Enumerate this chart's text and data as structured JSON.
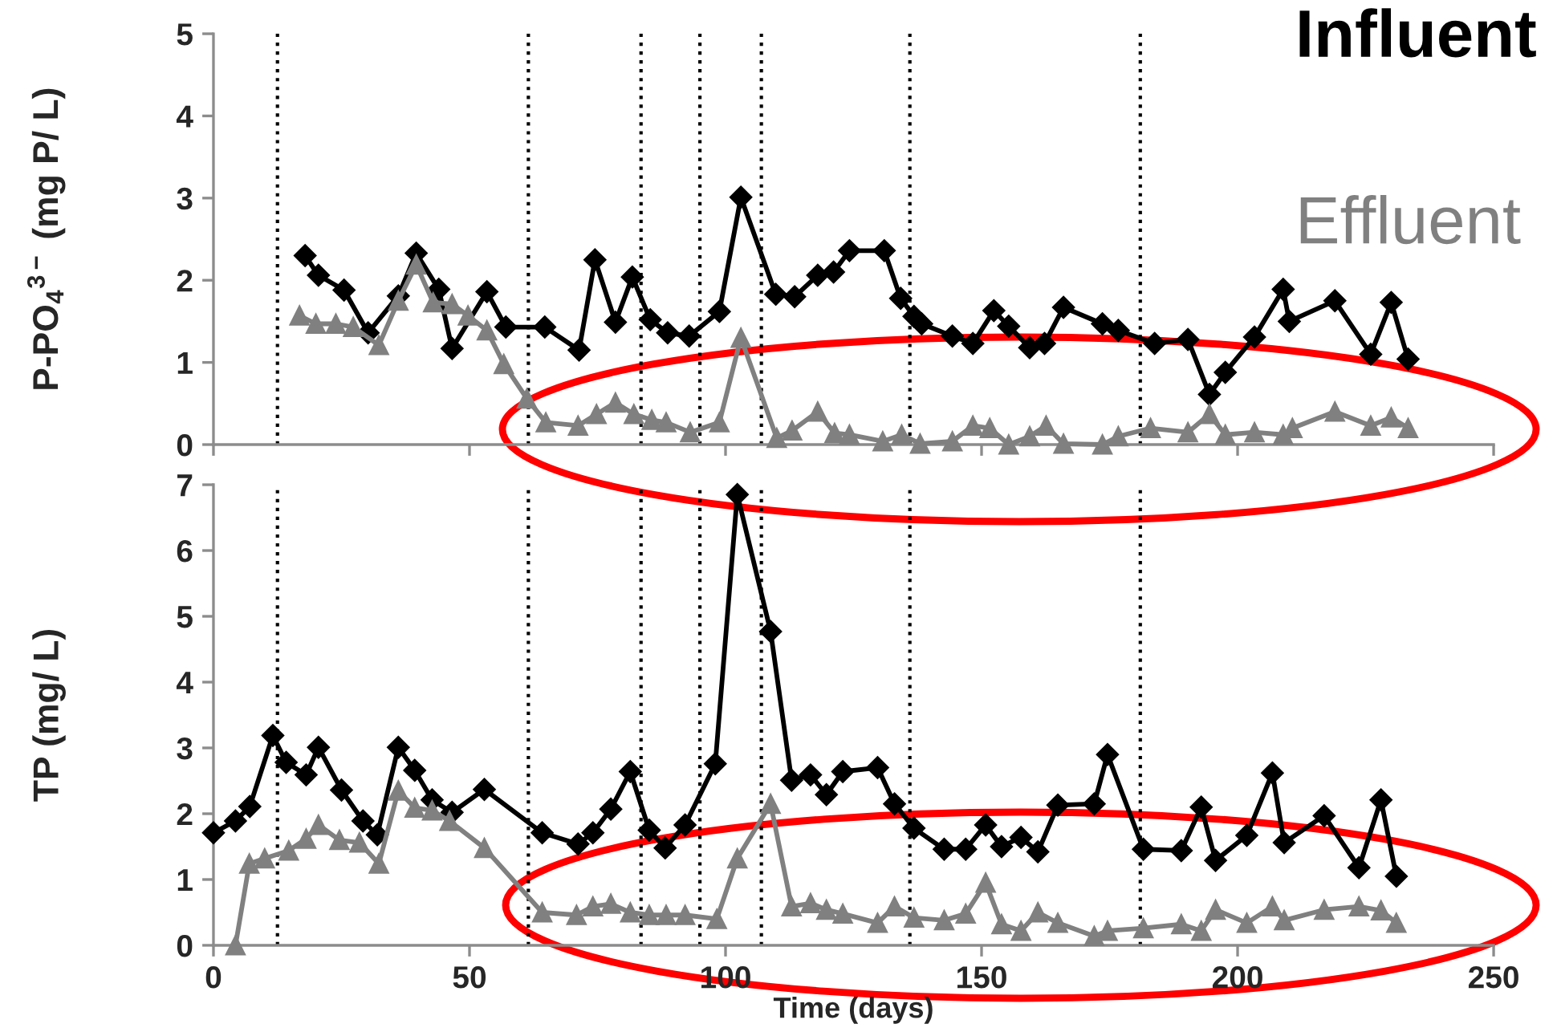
{
  "chart_data": [
    {
      "type": "line",
      "ylabel": "P-PO$_{4}$$^{3−}$ (mg P/ L)",
      "xlim": [
        0,
        250
      ],
      "xticks": [
        0,
        50,
        100,
        150,
        200,
        250
      ],
      "ylim": [
        0,
        5
      ],
      "yticks": [
        0,
        1,
        2,
        3,
        4,
        5
      ],
      "tick_labels": "y",
      "legend": "top right",
      "line_style": "solid",
      "ref_lines": [
        {
          "axis": "x",
          "value": 12.5,
          "color": "#000000",
          "line_style": "dotted"
        },
        {
          "axis": "x",
          "value": 61.5,
          "color": "#000000",
          "line_style": "dotted"
        },
        {
          "axis": "x",
          "value": 83.5,
          "color": "#000000",
          "line_style": "dotted"
        },
        {
          "axis": "x",
          "value": 95,
          "color": "#000000",
          "line_style": "dotted"
        },
        {
          "axis": "x",
          "value": 107,
          "color": "#000000",
          "line_style": "dotted"
        },
        {
          "axis": "x",
          "value": 136,
          "color": "#000000",
          "line_style": "dotted"
        },
        {
          "axis": "x",
          "value": 181,
          "color": "#000000",
          "line_style": "dotted"
        }
      ],
      "series": [
        {
          "name": "Influent",
          "color": "#000000",
          "marker": "diamond",
          "x": [
            17.9,
            20.5,
            25.5,
            30.2,
            36.1,
            39.6,
            44.0,
            46.6,
            53.4,
            57.1,
            64.7,
            71.4,
            74.5,
            78.5,
            81.8,
            85.3,
            88.7,
            92.9,
            98.8,
            103.0,
            109.8,
            113.5,
            118.0,
            121.1,
            124.2,
            131.0,
            134.2,
            136.8,
            138.3,
            144.3,
            148.3,
            152.4,
            155.3,
            159.4,
            162.3,
            166.0,
            173.6,
            176.7,
            183.8,
            190.3,
            194.5,
            197.6,
            203.3,
            208.9,
            210.1,
            219.0,
            226.0,
            230.0,
            233.3
          ],
          "values": [
            2.3,
            2.06,
            1.88,
            1.36,
            1.81,
            2.33,
            1.89,
            1.17,
            1.86,
            1.43,
            1.43,
            1.15,
            2.25,
            1.49,
            2.04,
            1.52,
            1.36,
            1.32,
            1.62,
            3.01,
            1.83,
            1.8,
            2.06,
            2.1,
            2.36,
            2.36,
            1.78,
            1.56,
            1.47,
            1.32,
            1.23,
            1.63,
            1.44,
            1.18,
            1.23,
            1.67,
            1.47,
            1.39,
            1.23,
            1.28,
            0.61,
            0.88,
            1.31,
            1.89,
            1.5,
            1.75,
            1.1,
            1.73,
            1.04
          ]
        },
        {
          "name": "Effluent",
          "color": "#808080",
          "marker": "triangle",
          "x": [
            16.8,
            20.0,
            23.9,
            27.3,
            32.3,
            36.1,
            39.6,
            42.9,
            46.6,
            49.7,
            53.4,
            56.7,
            61.2,
            64.9,
            71.2,
            74.8,
            78.5,
            82.1,
            85.6,
            88.4,
            93.1,
            98.8,
            103.0,
            110.0,
            113.0,
            118.0,
            121.3,
            124.2,
            130.7,
            134.4,
            138.0,
            144.3,
            148.3,
            151.6,
            155.3,
            159.4,
            162.6,
            166.0,
            173.6,
            176.7,
            183.0,
            190.3,
            194.5,
            197.6,
            203.3,
            208.9,
            210.7,
            219.0,
            226.0,
            230.0,
            233.3
          ],
          "values": [
            1.57,
            1.47,
            1.47,
            1.43,
            1.21,
            1.75,
            2.19,
            1.73,
            1.71,
            1.57,
            1.39,
            0.98,
            0.56,
            0.27,
            0.23,
            0.37,
            0.51,
            0.37,
            0.3,
            0.27,
            0.15,
            0.27,
            1.3,
            0.08,
            0.17,
            0.4,
            0.14,
            0.12,
            0.04,
            0.12,
            0.01,
            0.04,
            0.23,
            0.2,
            0.0,
            0.1,
            0.23,
            0.01,
            0.0,
            0.1,
            0.2,
            0.15,
            0.37,
            0.12,
            0.15,
            0.12,
            0.2,
            0.4,
            0.23,
            0.33,
            0.2
          ]
        }
      ]
    },
    {
      "type": "line",
      "ylabel": "TP (mg/ L)",
      "xlabel": "Time (days)",
      "xlim": [
        0,
        250
      ],
      "xticks": [
        0,
        50,
        100,
        150,
        200,
        250
      ],
      "ylim": [
        0,
        7
      ],
      "yticks": [
        0,
        1,
        2,
        3,
        4,
        5,
        6,
        7
      ],
      "line_style": "solid",
      "ref_lines": [
        {
          "axis": "x",
          "value": 12.5,
          "color": "#000000",
          "line_style": "dotted"
        },
        {
          "axis": "x",
          "value": 61.5,
          "color": "#000000",
          "line_style": "dotted"
        },
        {
          "axis": "x",
          "value": 83.5,
          "color": "#000000",
          "line_style": "dotted"
        },
        {
          "axis": "x",
          "value": 95,
          "color": "#000000",
          "line_style": "dotted"
        },
        {
          "axis": "x",
          "value": 107,
          "color": "#000000",
          "line_style": "dotted"
        },
        {
          "axis": "x",
          "value": 136,
          "color": "#000000",
          "line_style": "dotted"
        },
        {
          "axis": "x",
          "value": 181,
          "color": "#000000",
          "line_style": "dotted"
        }
      ],
      "series": [
        {
          "color": "#000000",
          "marker": "diamond",
          "x": [
            0,
            4.3,
            7.1,
            11.6,
            14.2,
            18.1,
            20.5,
            25.0,
            29.2,
            32.0,
            36.1,
            39.3,
            42.7,
            46.6,
            52.9,
            64.2,
            71.2,
            74.1,
            77.6,
            81.4,
            85.1,
            88.2,
            92.1,
            98.0,
            102.3,
            108.8,
            112.9,
            116.6,
            119.7,
            122.9,
            129.7,
            133.0,
            136.8,
            142.7,
            146.9,
            150.8,
            153.9,
            157.7,
            161.0,
            164.9,
            172.0,
            174.6,
            181.6,
            189.0,
            192.9,
            195.7,
            201.8,
            206.8,
            209.1,
            216.9,
            223.7,
            228.0,
            231.0
          ],
          "values": [
            1.71,
            1.89,
            2.11,
            3.19,
            2.78,
            2.59,
            3.01,
            2.36,
            1.89,
            1.68,
            3.01,
            2.66,
            2.21,
            2.02,
            2.37,
            1.71,
            1.54,
            1.71,
            2.07,
            2.64,
            1.75,
            1.48,
            1.83,
            2.76,
            6.85,
            4.77,
            2.51,
            2.59,
            2.29,
            2.64,
            2.7,
            2.15,
            1.78,
            1.46,
            1.46,
            1.83,
            1.5,
            1.64,
            1.42,
            2.13,
            2.15,
            2.9,
            1.46,
            1.44,
            2.1,
            1.29,
            1.67,
            2.62,
            1.56,
            1.97,
            1.18,
            2.21,
            1.05
          ]
        },
        {
          "color": "#808080",
          "marker": "triangle",
          "x": [
            4.3,
            7.0,
            10.0,
            14.7,
            18.1,
            20.5,
            24.6,
            28.5,
            32.3,
            36.1,
            39.3,
            42.7,
            46.1,
            52.9,
            64.2,
            70.9,
            74.1,
            77.6,
            81.4,
            85.1,
            88.4,
            92.1,
            98.3,
            102.3,
            108.8,
            112.9,
            116.6,
            119.7,
            122.9,
            129.7,
            133.0,
            136.8,
            142.7,
            146.9,
            150.8,
            153.9,
            157.7,
            161.0,
            164.9,
            172.0,
            174.6,
            181.6,
            189.0,
            192.9,
            195.7,
            201.8,
            206.8,
            209.1,
            216.9,
            223.7,
            228.0,
            231.0
          ],
          "values": [
            0.0,
            1.24,
            1.32,
            1.44,
            1.62,
            1.83,
            1.6,
            1.56,
            1.24,
            2.35,
            2.09,
            2.05,
            1.89,
            1.48,
            0.5,
            0.46,
            0.59,
            0.63,
            0.5,
            0.46,
            0.46,
            0.46,
            0.4,
            1.32,
            2.15,
            0.59,
            0.64,
            0.54,
            0.48,
            0.34,
            0.59,
            0.42,
            0.38,
            0.48,
            0.95,
            0.32,
            0.22,
            0.5,
            0.34,
            0.14,
            0.22,
            0.26,
            0.32,
            0.22,
            0.54,
            0.34,
            0.59,
            0.38,
            0.54,
            0.59,
            0.53,
            0.34
          ]
        }
      ]
    }
  ]
}
